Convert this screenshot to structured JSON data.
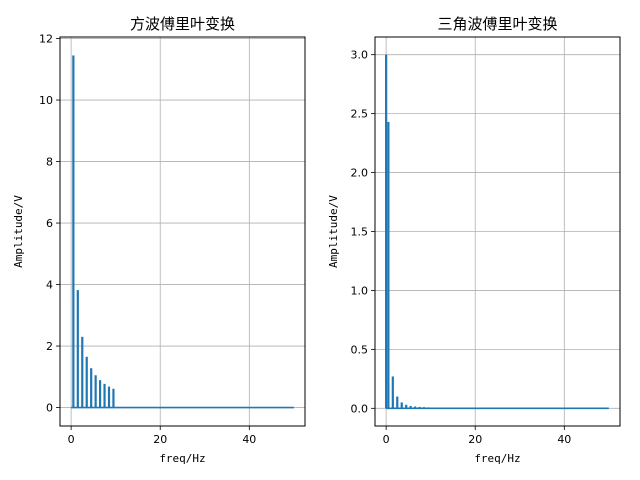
{
  "chart_data": [
    {
      "type": "bar",
      "title": "方波傅里叶变换",
      "xlabel": "freq/Hz",
      "ylabel": "Amplitude/V",
      "xlim": [
        -2.5,
        52.5
      ],
      "ylim": [
        -0.6,
        12.05
      ],
      "xticks": [
        "0",
        "20",
        "40"
      ],
      "xtick_values": [
        0,
        20,
        40
      ],
      "yticks": [
        "0",
        "2",
        "4",
        "6",
        "8",
        "10",
        "12"
      ],
      "ytick_values": [
        0,
        2,
        4,
        6,
        8,
        10,
        12
      ],
      "grid": true,
      "color": "#1f77b4",
      "x": [
        0.5,
        1.5,
        2.5,
        3.5,
        4.5,
        5.5,
        6.5,
        7.5,
        8.5,
        9.5
      ],
      "values": [
        11.45,
        3.82,
        2.3,
        1.65,
        1.28,
        1.05,
        0.89,
        0.77,
        0.68,
        0.61
      ],
      "baseline_x_range": [
        0,
        50
      ],
      "baseline_value": 0
    },
    {
      "type": "bar",
      "title": "三角波傅里叶变换",
      "xlabel": "freq/Hz",
      "ylabel": "Amplitude/V",
      "xlim": [
        -2.5,
        52.5
      ],
      "ylim": [
        -0.15,
        3.15
      ],
      "xticks": [
        "0",
        "20",
        "40"
      ],
      "xtick_values": [
        0,
        20,
        40
      ],
      "yticks": [
        "0.0",
        "0.5",
        "1.0",
        "1.5",
        "2.0",
        "2.5",
        "3.0"
      ],
      "ytick_values": [
        0,
        0.5,
        1.0,
        1.5,
        2.0,
        2.5,
        3.0
      ],
      "grid": true,
      "color": "#1f77b4",
      "x": [
        0,
        0.5,
        1.5,
        2.5,
        3.5,
        4.5,
        5.5,
        6.5,
        7.5,
        8.5,
        9.5
      ],
      "values": [
        3.0,
        2.43,
        0.27,
        0.1,
        0.05,
        0.03,
        0.02,
        0.015,
        0.012,
        0.01,
        0.008
      ],
      "baseline_x_range": [
        0,
        50
      ],
      "baseline_value": 0
    }
  ]
}
